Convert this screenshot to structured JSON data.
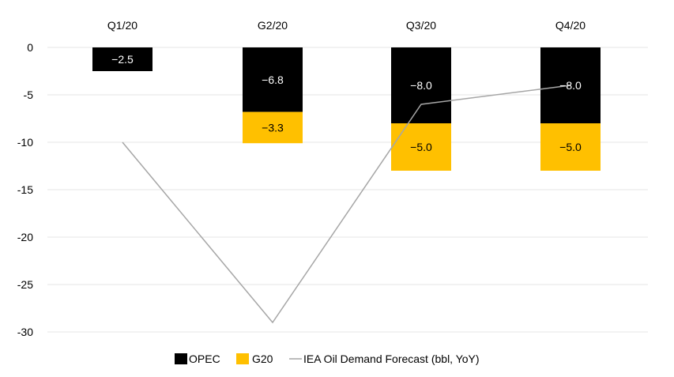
{
  "chart_data": {
    "type": "bar",
    "stacked": true,
    "categories": [
      "Q1/20",
      "G2/20",
      "Q3/20",
      "Q4/20"
    ],
    "category_axis_position": "top",
    "series": [
      {
        "name": "OPEC",
        "values": [
          -2.5,
          -6.8,
          -8.0,
          -8.0
        ],
        "labels": [
          "−2.5",
          "−6.8",
          "−8.0",
          "−8.0"
        ],
        "color": "#000000",
        "label_color": "#ffffff"
      },
      {
        "name": "G20",
        "values": [
          null,
          -3.3,
          -5.0,
          -5.0
        ],
        "labels": [
          "",
          "−3.3",
          "−5.0",
          "−5.0"
        ],
        "color": "#ffc000",
        "label_color": "#000000"
      }
    ],
    "line": {
      "name": "IEA Oil Demand Forecast (bbl, YoY)",
      "values": [
        -10,
        -29,
        -6,
        -4
      ],
      "color": "#a6a6a6"
    },
    "ylim": [
      -30,
      0
    ],
    "yticks": [
      0,
      -5,
      -10,
      -15,
      -20,
      -25,
      -30
    ],
    "ytick_labels": [
      "0",
      "-5",
      "-10",
      "-15",
      "-20",
      "-25",
      "-30"
    ],
    "grid": true,
    "grid_color": "#e6e6e6",
    "legend_position": "bottom-center",
    "title": "",
    "xlabel": "",
    "ylabel": ""
  }
}
